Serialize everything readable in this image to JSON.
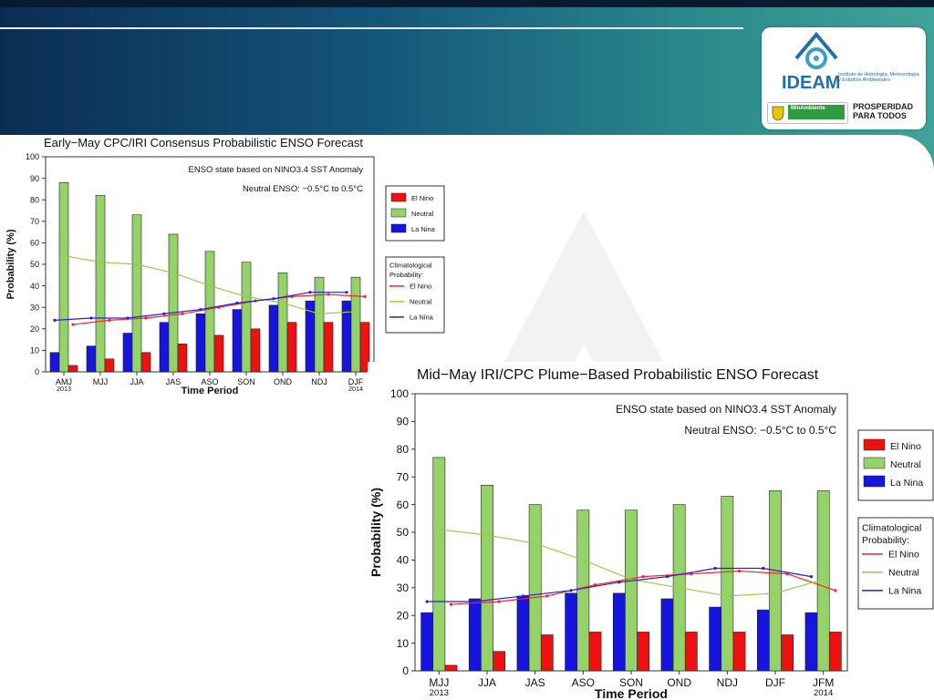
{
  "header": {
    "logo": {
      "name": "IDEAM",
      "subtitle": "Instituto de Hidrología, Meteorología y Estudios Ambientales",
      "left_badge": "MinAmbiente",
      "right_text_1": "PROSPERIDAD",
      "right_text_2": "PARA TODOS"
    }
  },
  "colors": {
    "el_nino": "#ee1111",
    "neutral": "#96d26a",
    "la_nina": "#1515dd",
    "clim_el_nino": "#ff2020",
    "clim_neutral": "#99cc44",
    "clim_la_nina": "#2020dd"
  },
  "chart_data": [
    {
      "type": "bar",
      "title": "Early−May CPC/IRI Consensus Probabilistic ENSO Forecast",
      "xlabel": "Time Period",
      "ylabel": "Probability (%)",
      "ylim": [
        0,
        100
      ],
      "yticks": [
        "0",
        "10",
        "20",
        "30",
        "40",
        "50",
        "60",
        "70",
        "80",
        "90",
        "100"
      ],
      "categories": [
        "AMJ",
        "MJJ",
        "JJA",
        "JAS",
        "ASO",
        "SON",
        "OND",
        "NDJ",
        "DJF"
      ],
      "year_start": "2013",
      "year_end": "2014",
      "annotation_1": "ENSO state based on NINO3.4 SST Anomaly",
      "annotation_2": "Neutral ENSO: −0.5°C to 0.5°C",
      "legend": [
        "El Nino",
        "Neutral",
        "La Nina"
      ],
      "clim_legend_title_1": "Climatological",
      "clim_legend_title_2": "Probability:",
      "clim_legend": [
        "El Nino",
        "Neutral",
        "La Nina"
      ],
      "series": [
        {
          "name": "La Nina",
          "values": [
            9,
            12,
            18,
            23,
            27,
            29,
            31,
            33,
            33
          ]
        },
        {
          "name": "Neutral",
          "values": [
            88,
            82,
            73,
            64,
            56,
            51,
            46,
            44,
            44
          ]
        },
        {
          "name": "El Nino",
          "values": [
            3,
            6,
            9,
            13,
            17,
            20,
            23,
            23,
            23
          ]
        }
      ],
      "climatology": [
        {
          "name": "El Nino",
          "values": [
            22,
            24,
            25,
            27,
            30,
            33,
            35,
            36,
            35
          ]
        },
        {
          "name": "Neutral",
          "values": [
            54,
            51,
            50,
            46,
            40,
            35,
            32,
            27,
            28
          ]
        },
        {
          "name": "La Nina",
          "values": [
            24,
            25,
            25,
            27,
            29,
            32,
            34,
            37,
            37
          ]
        }
      ]
    },
    {
      "type": "bar",
      "title": "Mid−May IRI/CPC Plume−Based Probabilistic ENSO Forecast",
      "xlabel": "Time Period",
      "ylabel": "Probability (%)",
      "ylim": [
        0,
        100
      ],
      "yticks": [
        "0",
        "10",
        "20",
        "30",
        "40",
        "50",
        "60",
        "70",
        "80",
        "90",
        "100"
      ],
      "categories": [
        "MJJ",
        "JJA",
        "JAS",
        "ASO",
        "SON",
        "OND",
        "NDJ",
        "DJF",
        "JFM"
      ],
      "year_start": "2013",
      "year_end": "2014",
      "annotation_1": "ENSO state based on NINO3.4 SST Anomaly",
      "annotation_2": "Neutral ENSO: −0.5°C to 0.5°C",
      "legend": [
        "El Nino",
        "Neutral",
        "La Nina"
      ],
      "clim_legend_title_1": "Climatological",
      "clim_legend_title_2": "Probability:",
      "clim_legend": [
        "El Nino",
        "Neutral",
        "La Nina"
      ],
      "series": [
        {
          "name": "La Nina",
          "values": [
            21,
            26,
            27,
            28,
            28,
            26,
            23,
            22,
            21
          ]
        },
        {
          "name": "Neutral",
          "values": [
            77,
            67,
            60,
            58,
            58,
            60,
            63,
            65,
            65
          ]
        },
        {
          "name": "El Nino",
          "values": [
            2,
            7,
            13,
            14,
            14,
            14,
            14,
            13,
            14
          ]
        }
      ],
      "climatology": [
        {
          "name": "El Nino",
          "values": [
            24,
            25,
            27,
            31,
            34,
            35,
            36,
            35,
            29
          ]
        },
        {
          "name": "Neutral",
          "values": [
            51,
            49,
            46,
            40,
            33,
            30,
            27,
            28,
            33
          ]
        },
        {
          "name": "La Nina",
          "values": [
            25,
            25,
            27,
            29,
            32,
            34,
            37,
            37,
            34
          ]
        }
      ]
    }
  ]
}
